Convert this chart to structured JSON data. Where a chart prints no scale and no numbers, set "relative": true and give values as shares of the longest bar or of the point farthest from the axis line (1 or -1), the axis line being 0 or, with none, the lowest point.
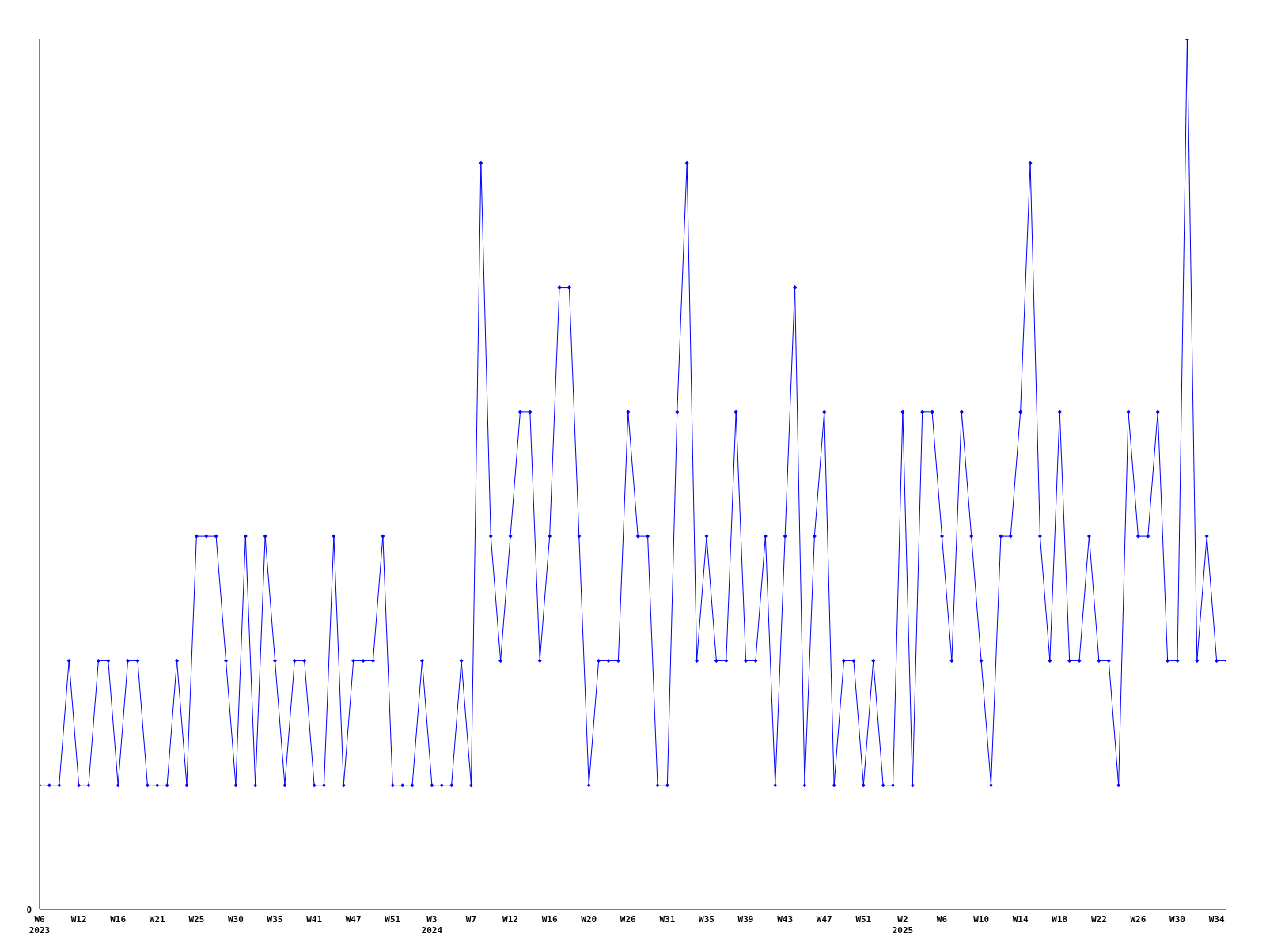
{
  "chart_data": {
    "type": "line",
    "relative": true,
    "annotations": [
      "0"
    ],
    "grid": false,
    "legend": false,
    "marker": "diamond",
    "line_style": "solid",
    "categories": [
      "W6\n2023",
      null,
      null,
      null,
      "W12",
      null,
      null,
      null,
      "W16",
      null,
      null,
      null,
      "W21",
      null,
      null,
      null,
      "W25",
      null,
      null,
      null,
      "W30",
      null,
      null,
      null,
      "W35",
      null,
      null,
      null,
      "W41",
      null,
      null,
      null,
      "W47",
      null,
      null,
      null,
      "W51",
      null,
      null,
      null,
      "W3\n2024",
      null,
      null,
      null,
      "W7",
      null,
      null,
      null,
      "W12",
      null,
      null,
      null,
      "W16",
      null,
      null,
      null,
      "W20",
      null,
      null,
      null,
      "W26",
      null,
      null,
      null,
      "W31",
      null,
      null,
      null,
      "W35",
      null,
      null,
      null,
      "W39",
      null,
      null,
      null,
      "W43",
      null,
      null,
      null,
      "W47",
      null,
      null,
      null,
      "W51",
      null,
      null,
      null,
      "W2\n2025",
      null,
      null,
      null,
      "W6",
      null,
      null,
      null,
      "W10",
      null,
      null,
      null,
      "W14",
      null,
      null,
      null,
      "W18",
      null,
      null,
      null,
      "W22",
      null,
      null,
      null,
      "W26",
      null,
      null,
      null,
      "W30",
      null,
      null,
      null,
      "W34",
      null
    ],
    "series": [
      {
        "color": "#0000ff",
        "values": [
          0.1429,
          0.1429,
          0.1429,
          0.2857,
          0.1429,
          0.1429,
          0.2857,
          0.2857,
          0.1429,
          0.2857,
          0.2857,
          0.1429,
          0.1429,
          0.1429,
          0.2857,
          0.1429,
          0.4286,
          0.4286,
          0.4286,
          0.2857,
          0.1429,
          0.4286,
          0.1429,
          0.4286,
          0.2857,
          0.1429,
          0.2857,
          0.2857,
          0.1429,
          0.1429,
          0.4286,
          0.1429,
          0.2857,
          0.2857,
          0.2857,
          0.4286,
          0.1429,
          0.1429,
          0.1429,
          0.2857,
          0.1429,
          0.1429,
          0.1429,
          0.2857,
          0.1429,
          0.8571,
          0.4286,
          0.2857,
          0.4286,
          0.5714,
          0.5714,
          0.2857,
          0.4286,
          0.7143,
          0.7143,
          0.4286,
          0.1429,
          0.2857,
          0.2857,
          0.2857,
          0.5714,
          0.4286,
          0.4286,
          0.1429,
          0.1429,
          0.5714,
          0.8571,
          0.2857,
          0.4286,
          0.2857,
          0.2857,
          0.5714,
          0.2857,
          0.2857,
          0.4286,
          0.1429,
          0.4286,
          0.7143,
          0.1429,
          0.4286,
          0.5714,
          0.1429,
          0.2857,
          0.2857,
          0.1429,
          0.2857,
          0.1429,
          0.1429,
          0.5714,
          0.1429,
          0.5714,
          0.5714,
          0.4286,
          0.2857,
          0.5714,
          0.4286,
          0.2857,
          0.1429,
          0.4286,
          0.4286,
          0.5714,
          0.8571,
          0.4286,
          0.2857,
          0.5714,
          0.2857,
          0.2857,
          0.4286,
          0.2857,
          0.2857,
          0.1429,
          0.5714,
          0.4286,
          0.4286,
          0.5714,
          0.2857,
          0.2857,
          1,
          0.2857,
          0.4286,
          0.2857,
          0.2857
        ]
      }
    ]
  }
}
